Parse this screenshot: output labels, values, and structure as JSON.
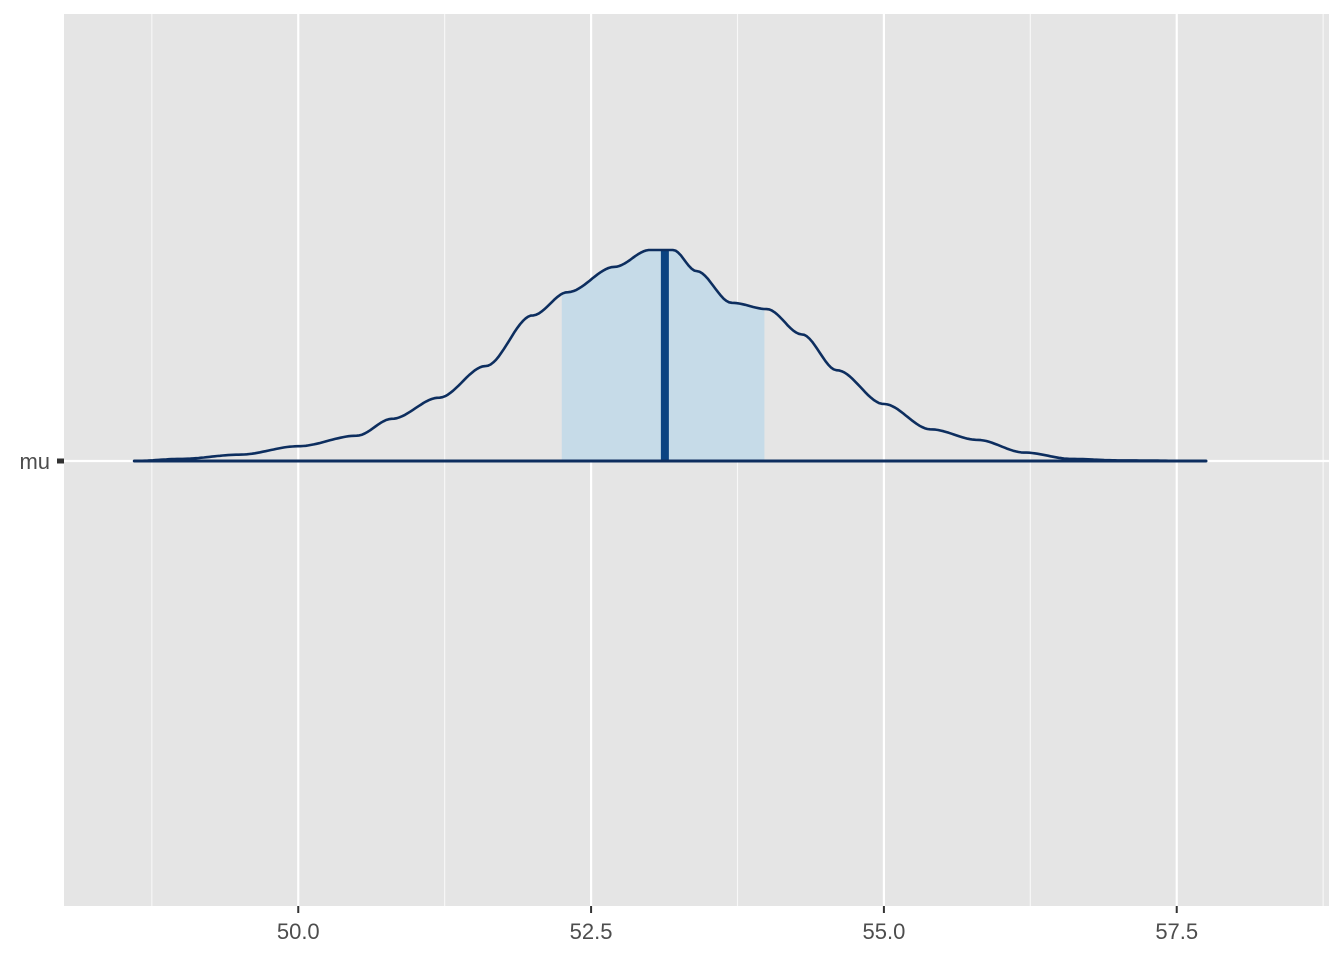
{
  "chart_data": {
    "type": "area",
    "subtype": "posterior-density (ridge)",
    "parameter": "mu",
    "xlim": [
      48.0,
      58.8
    ],
    "x_ticks": [
      "50.0",
      "52.5",
      "55.0",
      "57.5"
    ],
    "x_tick_values": [
      50.0,
      52.5,
      55.0,
      57.5
    ],
    "y_categories": [
      "mu"
    ],
    "grid": true,
    "point_estimate": 53.13,
    "interval": [
      52.25,
      53.98
    ],
    "support": [
      48.6,
      57.75
    ],
    "density": {
      "x": [
        48.6,
        49.0,
        49.5,
        50.0,
        50.5,
        50.8,
        51.2,
        51.6,
        52.0,
        52.3,
        52.7,
        53.0,
        53.2,
        53.4,
        53.7,
        54.0,
        54.3,
        54.6,
        55.0,
        55.4,
        55.8,
        56.2,
        56.6,
        57.0,
        57.75
      ],
      "y": [
        0.0,
        0.01,
        0.03,
        0.07,
        0.12,
        0.2,
        0.3,
        0.45,
        0.69,
        0.8,
        0.92,
        1.0,
        1.0,
        0.9,
        0.75,
        0.72,
        0.6,
        0.43,
        0.27,
        0.15,
        0.1,
        0.04,
        0.01,
        0.003,
        0.0
      ]
    },
    "colors": {
      "panel": "#e5e5e5",
      "grid": "#ffffff",
      "outline": "#0d2e5f",
      "interval_fill": "#c6dbe8",
      "point_line": "#0b4381",
      "axis_text": "#4d4d4d"
    }
  }
}
